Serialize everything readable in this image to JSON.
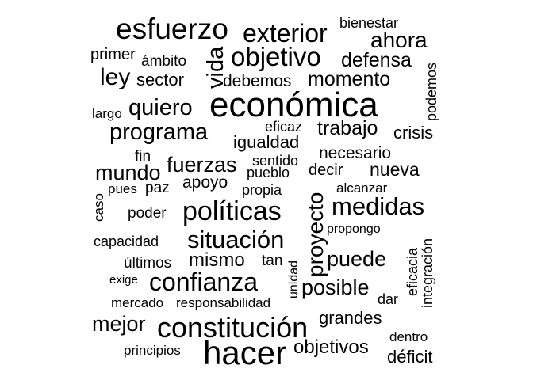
{
  "cloud": {
    "words": [
      "económica",
      "hacer",
      "constitución",
      "políticas",
      "esfuerzo",
      "confianza",
      "situación",
      "exterior",
      "objetivo",
      "medidas",
      "programa",
      "proyecto",
      "quiero",
      "mundo",
      "fuerzas",
      "mejor",
      "puede",
      "posible",
      "objetivos",
      "ahora",
      "ley",
      "vida",
      "momento",
      "defensa",
      "trabajo",
      "igualdad",
      "grandes",
      "mismo",
      "debemos",
      "sector",
      "nueva",
      "necesario",
      "crisis",
      "apoyo",
      "déficit",
      "primer",
      "ámbito",
      "bienestar",
      "podemos",
      "largo",
      "eficaz",
      "fin",
      "sentido",
      "pueblo",
      "decir",
      "pues",
      "paz",
      "caso",
      "propia",
      "alcanzar",
      "poder",
      "capacidad",
      "propongo",
      "últimos",
      "tan",
      "unidad",
      "exige",
      "mercado",
      "responsabilidad",
      "dar",
      "principios",
      "dentro",
      "eficacia",
      "integración"
    ]
  }
}
